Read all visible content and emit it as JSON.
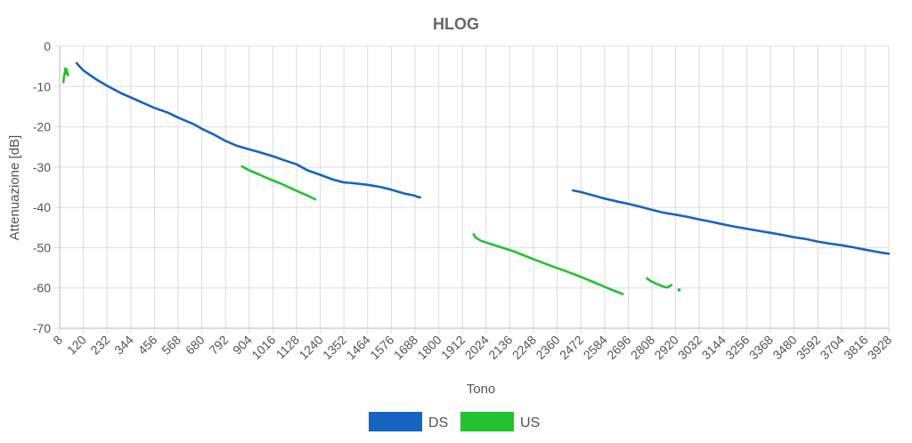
{
  "chart_data": {
    "type": "line",
    "title": "HLOG",
    "xlabel": "Tono",
    "ylabel": "Attenuazione [dB]",
    "xlim": [
      8,
      3928
    ],
    "ylim": [
      -70,
      0
    ],
    "x_ticks": [
      8,
      120,
      232,
      344,
      456,
      568,
      680,
      792,
      904,
      1016,
      1128,
      1240,
      1352,
      1464,
      1576,
      1688,
      1800,
      1912,
      2024,
      2136,
      2248,
      2360,
      2472,
      2584,
      2696,
      2808,
      2920,
      3032,
      3144,
      3256,
      3368,
      3480,
      3592,
      3704,
      3816,
      3928
    ],
    "y_ticks": [
      0,
      -10,
      -20,
      -30,
      -40,
      -50,
      -60,
      -70
    ],
    "grid": true,
    "legend_position": "bottom",
    "series": [
      {
        "name": "DS",
        "color": "#1565c0",
        "segments": [
          [
            [
              88,
              -4.2
            ],
            [
              120,
              -6
            ],
            [
              180,
              -8.2
            ],
            [
              232,
              -9.8
            ],
            [
              300,
              -11.7
            ],
            [
              344,
              -12.7
            ],
            [
              400,
              -14
            ],
            [
              456,
              -15.3
            ],
            [
              520,
              -16.5
            ],
            [
              568,
              -17.7
            ],
            [
              640,
              -19.3
            ],
            [
              680,
              -20.5
            ],
            [
              740,
              -22
            ],
            [
              792,
              -23.5
            ],
            [
              850,
              -24.8
            ],
            [
              904,
              -25.6
            ],
            [
              960,
              -26.4
            ],
            [
              1016,
              -27.3
            ],
            [
              1070,
              -28.3
            ],
            [
              1128,
              -29.3
            ],
            [
              1180,
              -30.8
            ],
            [
              1240,
              -31.9
            ],
            [
              1300,
              -33.1
            ],
            [
              1352,
              -33.8
            ],
            [
              1400,
              -34
            ],
            [
              1464,
              -34.4
            ],
            [
              1520,
              -34.9
            ],
            [
              1576,
              -35.6
            ],
            [
              1640,
              -36.6
            ],
            [
              1688,
              -37.1
            ],
            [
              1700,
              -37.4
            ],
            [
              1712,
              -37.5
            ]
          ],
          [
            [
              2435,
              -35.8
            ],
            [
              2472,
              -36.2
            ],
            [
              2530,
              -37
            ],
            [
              2584,
              -37.8
            ],
            [
              2640,
              -38.5
            ],
            [
              2696,
              -39.1
            ],
            [
              2750,
              -39.8
            ],
            [
              2808,
              -40.6
            ],
            [
              2860,
              -41.3
            ],
            [
              2920,
              -41.8
            ],
            [
              2980,
              -42.4
            ],
            [
              3032,
              -43
            ],
            [
              3090,
              -43.6
            ],
            [
              3144,
              -44.2
            ],
            [
              3200,
              -44.8
            ],
            [
              3256,
              -45.3
            ],
            [
              3310,
              -45.8
            ],
            [
              3368,
              -46.3
            ],
            [
              3420,
              -46.8
            ],
            [
              3480,
              -47.4
            ],
            [
              3540,
              -47.9
            ],
            [
              3592,
              -48.5
            ],
            [
              3650,
              -49
            ],
            [
              3704,
              -49.4
            ],
            [
              3760,
              -49.9
            ],
            [
              3816,
              -50.5
            ],
            [
              3870,
              -51
            ],
            [
              3900,
              -51.3
            ],
            [
              3928,
              -51.5
            ]
          ]
        ]
      },
      {
        "name": "US",
        "color": "#22c32e",
        "segments": [
          [
            [
              26,
              -8.9
            ],
            [
              28,
              -7.5
            ],
            [
              31,
              -7
            ],
            [
              35,
              -5.5
            ],
            [
              38,
              -6.8
            ],
            [
              41,
              -5.7
            ],
            [
              44,
              -6.5
            ],
            [
              48,
              -7.2
            ]
          ],
          [
            [
              870,
              -29.8
            ],
            [
              904,
              -30.8
            ],
            [
              950,
              -31.8
            ],
            [
              1000,
              -33
            ],
            [
              1050,
              -34
            ],
            [
              1100,
              -35.2
            ],
            [
              1150,
              -36.4
            ],
            [
              1190,
              -37.3
            ],
            [
              1216,
              -38
            ]
          ],
          [
            [
              1965,
              -46.7
            ],
            [
              1975,
              -47.5
            ],
            [
              2000,
              -48.3
            ],
            [
              2040,
              -49
            ],
            [
              2100,
              -50
            ],
            [
              2160,
              -51
            ],
            [
              2220,
              -52.3
            ],
            [
              2280,
              -53.5
            ],
            [
              2340,
              -54.7
            ],
            [
              2400,
              -55.8
            ],
            [
              2460,
              -57
            ],
            [
              2520,
              -58.3
            ],
            [
              2580,
              -59.6
            ],
            [
              2620,
              -60.5
            ],
            [
              2660,
              -61.3
            ],
            [
              2670,
              -61.5
            ]
          ],
          [
            [
              2785,
              -57.6
            ],
            [
              2800,
              -58.2
            ],
            [
              2830,
              -59
            ],
            [
              2860,
              -59.6
            ],
            [
              2880,
              -59.9
            ],
            [
              2900,
              -59.3
            ]
          ],
          [
            [
              2936,
              -60.5
            ]
          ]
        ]
      }
    ]
  }
}
